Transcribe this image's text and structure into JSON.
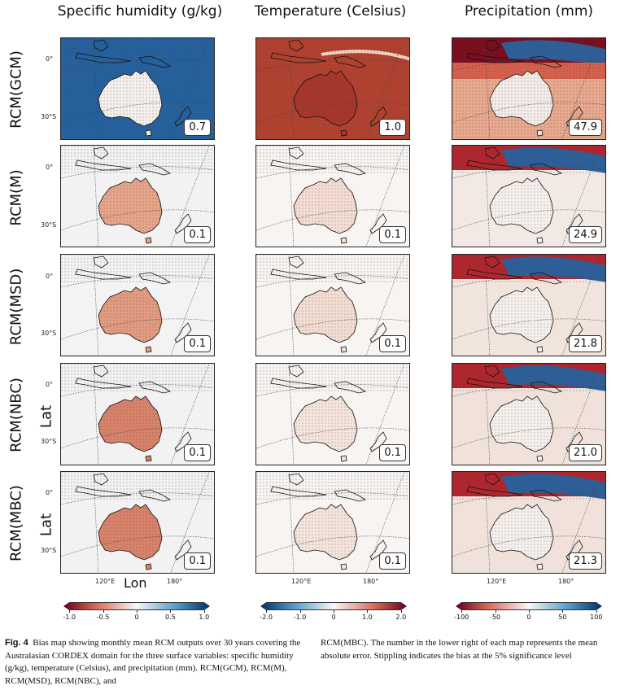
{
  "columns": {
    "humidity": "Specific humidity (g/kg)",
    "temperature": "Temperature (Celsius)",
    "precipitation": "Precipitation (mm)"
  },
  "rows": {
    "r1": "RCM(GCM)",
    "r2": "RCM(M)",
    "r3": "RCM(MSD)",
    "r4": "RCM(NBC)",
    "r5": "RCM(MBC)"
  },
  "mae": {
    "humidity": [
      "0.7",
      "0.1",
      "0.1",
      "0.1",
      "0.1"
    ],
    "temperature": [
      "1.0",
      "0.1",
      "0.1",
      "0.1",
      "0.1"
    ],
    "precipitation": [
      "47.9",
      "24.9",
      "21.8",
      "21.0",
      "21.3"
    ]
  },
  "axes": {
    "lat_label": "Lat",
    "lon_label": "Lon",
    "lat_ticks": [
      "0°",
      "30°S"
    ],
    "lon_ticks": [
      "120°E",
      "180°"
    ]
  },
  "colorbars": {
    "humidity": {
      "ticks": [
        "-1.0",
        "-0.5",
        "0",
        "0.5",
        "1.0"
      ],
      "colors": [
        "#67001f",
        "#f7f7f7",
        "#053061"
      ]
    },
    "temperature": {
      "ticks": [
        "-2.0",
        "-1.0",
        "0",
        "1.0",
        "2.0"
      ],
      "colors": [
        "#053061",
        "#f7f7f7",
        "#67001f"
      ]
    },
    "precipitation": {
      "ticks": [
        "-100",
        "-50",
        "0",
        "50",
        "100"
      ],
      "colors": [
        "#67001f",
        "#f7f7f7",
        "#053061"
      ]
    }
  },
  "caption": {
    "label": "Fig. 4",
    "left_text": "Bias map showing monthly mean RCM outputs over 30 years covering the Australasian CORDEX domain for the three surface variables: specific humidity (g/kg), temperature (Celsius), and precipitation (mm). RCM(GCM), RCM(M), RCM(MSD), RCM(NBC), and",
    "right_text": "RCM(MBC). The number in the lower right of each map represents the mean absolute error. Stippling indicates the bias at the 5% significance level"
  }
}
